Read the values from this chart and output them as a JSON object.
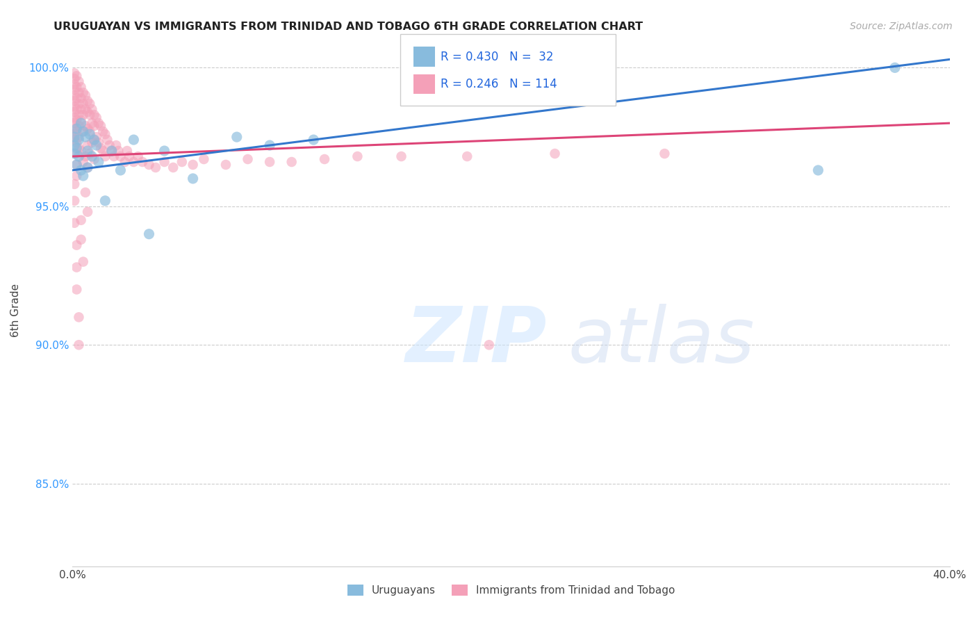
{
  "title": "URUGUAYAN VS IMMIGRANTS FROM TRINIDAD AND TOBAGO 6TH GRADE CORRELATION CHART",
  "source": "Source: ZipAtlas.com",
  "ylabel": "6th Grade",
  "xlim": [
    0.0,
    0.4
  ],
  "ylim": [
    0.82,
    1.005
  ],
  "x_ticks": [
    0.0,
    0.1,
    0.2,
    0.3,
    0.4
  ],
  "x_tick_labels": [
    "0.0%",
    "",
    "",
    "",
    "40.0%"
  ],
  "y_ticks": [
    0.85,
    0.9,
    0.95,
    1.0
  ],
  "y_tick_labels": [
    "85.0%",
    "90.0%",
    "95.0%",
    "100.0%"
  ],
  "r_uruguayan": 0.43,
  "n_uruguayan": 32,
  "r_immigrant": 0.246,
  "n_immigrant": 114,
  "color_uruguayan": "#88bbdd",
  "color_immigrant": "#f4a0b8",
  "trendline_color_uruguayan": "#3377cc",
  "trendline_color_immigrant": "#dd4477",
  "legend_label_uruguayan": "Uruguayans",
  "legend_label_immigrant": "Immigrants from Trinidad and Tobago",
  "uruguayan_x": [
    0.001,
    0.001,
    0.001,
    0.002,
    0.002,
    0.002,
    0.003,
    0.003,
    0.004,
    0.004,
    0.005,
    0.005,
    0.006,
    0.007,
    0.007,
    0.008,
    0.009,
    0.01,
    0.011,
    0.012,
    0.015,
    0.018,
    0.022,
    0.028,
    0.035,
    0.042,
    0.055,
    0.075,
    0.09,
    0.11,
    0.34,
    0.375
  ],
  "uruguayan_y": [
    0.972,
    0.975,
    0.969,
    0.978,
    0.971,
    0.965,
    0.974,
    0.968,
    0.98,
    0.963,
    0.977,
    0.961,
    0.975,
    0.97,
    0.964,
    0.976,
    0.968,
    0.974,
    0.972,
    0.966,
    0.952,
    0.97,
    0.963,
    0.974,
    0.94,
    0.97,
    0.96,
    0.975,
    0.972,
    0.974,
    0.963,
    1.0
  ],
  "immigrant_x": [
    0.001,
    0.001,
    0.001,
    0.001,
    0.001,
    0.001,
    0.001,
    0.001,
    0.001,
    0.001,
    0.001,
    0.001,
    0.001,
    0.002,
    0.002,
    0.002,
    0.002,
    0.002,
    0.002,
    0.002,
    0.002,
    0.002,
    0.002,
    0.003,
    0.003,
    0.003,
    0.003,
    0.003,
    0.003,
    0.003,
    0.004,
    0.004,
    0.004,
    0.004,
    0.004,
    0.005,
    0.005,
    0.005,
    0.005,
    0.005,
    0.006,
    0.006,
    0.006,
    0.006,
    0.007,
    0.007,
    0.007,
    0.007,
    0.007,
    0.008,
    0.008,
    0.008,
    0.008,
    0.009,
    0.009,
    0.009,
    0.01,
    0.01,
    0.01,
    0.01,
    0.011,
    0.011,
    0.012,
    0.012,
    0.013,
    0.013,
    0.014,
    0.014,
    0.015,
    0.015,
    0.016,
    0.017,
    0.018,
    0.019,
    0.02,
    0.021,
    0.022,
    0.024,
    0.025,
    0.026,
    0.028,
    0.03,
    0.032,
    0.035,
    0.038,
    0.042,
    0.046,
    0.05,
    0.055,
    0.06,
    0.07,
    0.08,
    0.09,
    0.1,
    0.115,
    0.13,
    0.15,
    0.18,
    0.22,
    0.27,
    0.001,
    0.001,
    0.001,
    0.002,
    0.002,
    0.002,
    0.003,
    0.003,
    0.004,
    0.004,
    0.005,
    0.006,
    0.007,
    0.19
  ],
  "immigrant_y": [
    0.998,
    0.996,
    0.994,
    0.992,
    0.99,
    0.988,
    0.986,
    0.984,
    0.982,
    0.98,
    0.978,
    0.976,
    0.974,
    0.997,
    0.993,
    0.989,
    0.985,
    0.981,
    0.977,
    0.973,
    0.969,
    0.965,
    0.961,
    0.995,
    0.991,
    0.987,
    0.983,
    0.979,
    0.975,
    0.971,
    0.993,
    0.989,
    0.985,
    0.981,
    0.97,
    0.991,
    0.987,
    0.983,
    0.977,
    0.966,
    0.99,
    0.985,
    0.979,
    0.968,
    0.988,
    0.984,
    0.978,
    0.972,
    0.964,
    0.987,
    0.983,
    0.977,
    0.969,
    0.985,
    0.98,
    0.973,
    0.983,
    0.979,
    0.974,
    0.967,
    0.982,
    0.975,
    0.98,
    0.973,
    0.979,
    0.971,
    0.977,
    0.97,
    0.976,
    0.968,
    0.974,
    0.972,
    0.97,
    0.968,
    0.972,
    0.97,
    0.968,
    0.966,
    0.97,
    0.968,
    0.966,
    0.968,
    0.966,
    0.965,
    0.964,
    0.966,
    0.964,
    0.966,
    0.965,
    0.967,
    0.965,
    0.967,
    0.966,
    0.966,
    0.967,
    0.968,
    0.968,
    0.968,
    0.969,
    0.969,
    0.958,
    0.952,
    0.944,
    0.936,
    0.928,
    0.92,
    0.91,
    0.9,
    0.945,
    0.938,
    0.93,
    0.955,
    0.948,
    0.9
  ]
}
